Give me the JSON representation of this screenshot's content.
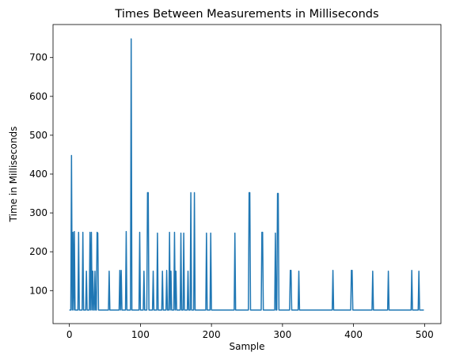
{
  "chart_data": {
    "type": "line",
    "title": "Times Between Measurements in Milliseconds",
    "xlabel": "Sample",
    "ylabel": "Time in Milliseconds",
    "xlim": [
      -23,
      523
    ],
    "ylim": [
      15,
      785
    ],
    "xticks": [
      0,
      100,
      200,
      300,
      400,
      500
    ],
    "yticks": [
      100,
      200,
      300,
      400,
      500,
      600,
      700
    ],
    "grid": false,
    "legend": "none",
    "series": [
      {
        "name": "Times Between Measurements",
        "color": "#1f77b4",
        "baseline": 50,
        "n_samples": 500,
        "spikes": [
          [
            3,
            448
          ],
          [
            5,
            250
          ],
          [
            7,
            252
          ],
          [
            13,
            250
          ],
          [
            19,
            250
          ],
          [
            24,
            150
          ],
          [
            29,
            250
          ],
          [
            31,
            250
          ],
          [
            33,
            150
          ],
          [
            36,
            150
          ],
          [
            39,
            250
          ],
          [
            40,
            248
          ],
          [
            56,
            150
          ],
          [
            71,
            152
          ],
          [
            73,
            152
          ],
          [
            80,
            252
          ],
          [
            87,
            748
          ],
          [
            99,
            250
          ],
          [
            105,
            150
          ],
          [
            110,
            352
          ],
          [
            111,
            352
          ],
          [
            118,
            150
          ],
          [
            124,
            248
          ],
          [
            131,
            150
          ],
          [
            137,
            152
          ],
          [
            141,
            250
          ],
          [
            143,
            150
          ],
          [
            148,
            250
          ],
          [
            150,
            150
          ],
          [
            157,
            248
          ],
          [
            161,
            248
          ],
          [
            167,
            150
          ],
          [
            171,
            352
          ],
          [
            176,
            352
          ],
          [
            193,
            248
          ],
          [
            199,
            248
          ],
          [
            233,
            248
          ],
          [
            253,
            352
          ],
          [
            254,
            352
          ],
          [
            271,
            250
          ],
          [
            272,
            250
          ],
          [
            290,
            248
          ],
          [
            293,
            350
          ],
          [
            294,
            350
          ],
          [
            311,
            152
          ],
          [
            312,
            152
          ],
          [
            323,
            150
          ],
          [
            371,
            152
          ],
          [
            397,
            152
          ],
          [
            398,
            152
          ],
          [
            427,
            150
          ],
          [
            449,
            150
          ],
          [
            482,
            152
          ],
          [
            492,
            150
          ],
          [
            498,
            50
          ]
        ]
      }
    ]
  }
}
